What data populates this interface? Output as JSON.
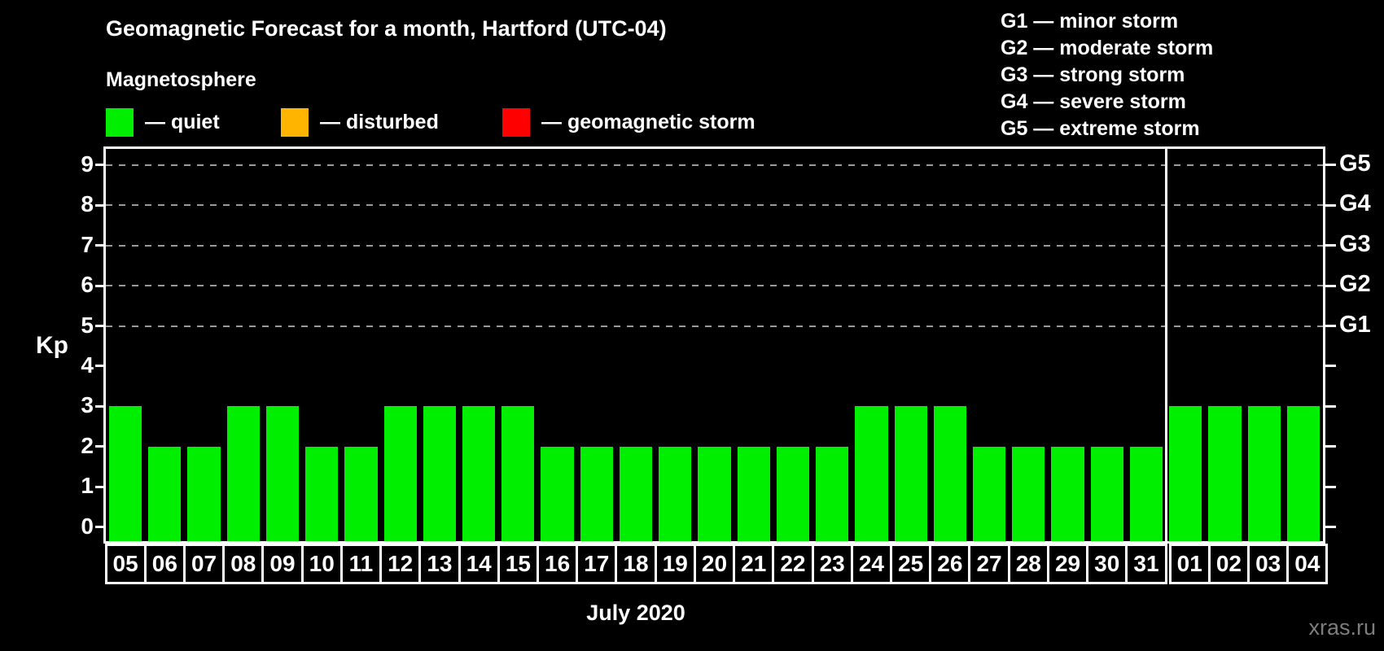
{
  "title": "Geomagnetic Forecast for a month, Hartford (UTC-04)",
  "subtitle": "Magnetosphere",
  "magnetosphere_legend": [
    {
      "name": "quiet",
      "label": "— quiet",
      "color": "#00ee00"
    },
    {
      "name": "disturbed",
      "label": "— disturbed",
      "color": "#ffb400"
    },
    {
      "name": "geomagnetic-storm",
      "label": "— geomagnetic storm",
      "color": "#ff0000"
    }
  ],
  "storm_scale_legend": [
    "G1 — minor storm",
    "G2 — moderate storm",
    "G3 — strong storm",
    "G4 — severe storm",
    "G5 — extreme storm"
  ],
  "kp_axis_label": "Kp",
  "watermark": "xras.ru",
  "chart_data": {
    "type": "bar",
    "title": "Geomagnetic Forecast for a month, Hartford (UTC-04)",
    "ylabel": "Kp",
    "xlabel": "July 2020",
    "ylim": [
      0,
      9
    ],
    "yticks": [
      0,
      1,
      2,
      3,
      4,
      5,
      6,
      7,
      8,
      9
    ],
    "gridlines_at": [
      5,
      6,
      7,
      8,
      9
    ],
    "grid": "dashed horizontal lines at storm threshold levels only",
    "right_axis": [
      {
        "kp": 5,
        "label": "G1"
      },
      {
        "kp": 6,
        "label": "G2"
      },
      {
        "kp": 7,
        "label": "G3"
      },
      {
        "kp": 8,
        "label": "G4"
      },
      {
        "kp": 9,
        "label": "G5"
      }
    ],
    "categories": [
      "05",
      "06",
      "07",
      "08",
      "09",
      "10",
      "11",
      "12",
      "13",
      "14",
      "15",
      "16",
      "17",
      "18",
      "19",
      "20",
      "21",
      "22",
      "23",
      "24",
      "25",
      "26",
      "27",
      "28",
      "29",
      "30",
      "31",
      "01",
      "02",
      "03",
      "04"
    ],
    "values": [
      3,
      2,
      2,
      3,
      3,
      2,
      2,
      3,
      3,
      3,
      3,
      2,
      2,
      2,
      2,
      2,
      2,
      2,
      2,
      3,
      3,
      3,
      2,
      2,
      2,
      2,
      2,
      3,
      3,
      3,
      3
    ],
    "bar_color": "#00ee00",
    "month_boundary_after_index": 26,
    "legend_position": "top"
  }
}
